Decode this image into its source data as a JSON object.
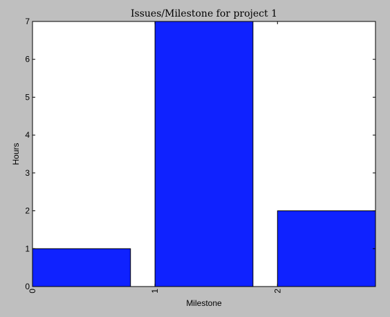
{
  "chart_data": {
    "type": "bar",
    "title": "Issues/Milestone for project 1",
    "xlabel": "Milestone",
    "ylabel": "Hours",
    "categories": [
      "0",
      "1",
      "2"
    ],
    "bar_starts": [
      0,
      1,
      2
    ],
    "bar_width": 0.8,
    "values": [
      1,
      7,
      2
    ],
    "xlim": [
      0,
      2.8
    ],
    "ylim": [
      0,
      7
    ],
    "yticks": [
      0,
      1,
      2,
      3,
      4,
      5,
      6,
      7
    ],
    "xticks": [
      0,
      1,
      2
    ],
    "bar_color": "#0f22ff",
    "background": "#bfbfbf",
    "plot_background": "#ffffff",
    "grid": false
  }
}
